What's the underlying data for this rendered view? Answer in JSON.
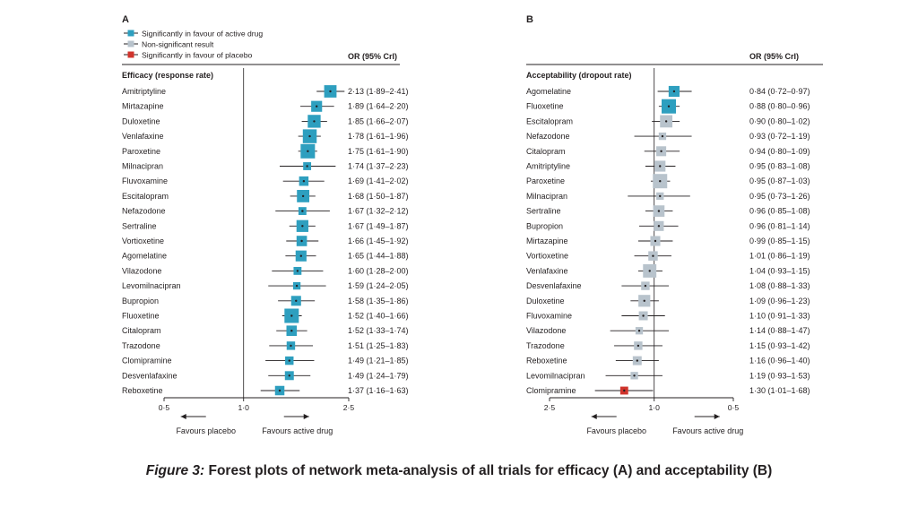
{
  "legend": {
    "items": [
      {
        "label": "Significantly in favour of active drug",
        "color": "#2e9fbf",
        "icon": "teal-square"
      },
      {
        "label": "Non-significant result",
        "color": "#b8c3cc",
        "icon": "grey-square"
      },
      {
        "label": "Significantly in favour of placebo",
        "color": "#d0342c",
        "icon": "red-square"
      }
    ]
  },
  "caption": {
    "label": "Figure 3:",
    "text": "Forest plots of network meta-analysis of all trials for efficacy (A) and acceptability (B)"
  },
  "chart_data": [
    {
      "type": "forest",
      "panel_label": "A",
      "title": "Efficacy (response rate)",
      "column_header": "OR (95% CrI)",
      "x_scale": "log",
      "xlim": [
        0.5,
        2.5
      ],
      "x_ticks": [
        0.5,
        1.0,
        2.5
      ],
      "x_tick_labels": [
        "0·5",
        "1·0",
        "2·5"
      ],
      "reference_line": 1.0,
      "direction_left": "Favours placebo",
      "direction_right": "Favours active drug",
      "rows": [
        {
          "label": "Amitriptyline",
          "or": 2.13,
          "lo": 1.89,
          "hi": 2.41,
          "ci_text": "2·13 (1·89–2·41)",
          "result": "favour_drug",
          "weight": 0.8
        },
        {
          "label": "Mirtazapine",
          "or": 1.89,
          "lo": 1.64,
          "hi": 2.2,
          "ci_text": "1·89 (1·64–2·20)",
          "result": "favour_drug",
          "weight": 0.65
        },
        {
          "label": "Duloxetine",
          "or": 1.85,
          "lo": 1.66,
          "hi": 2.07,
          "ci_text": "1·85 (1·66–2·07)",
          "result": "favour_drug",
          "weight": 0.85
        },
        {
          "label": "Venlafaxine",
          "or": 1.78,
          "lo": 1.61,
          "hi": 1.96,
          "ci_text": "1·78 (1·61–1·96)",
          "result": "favour_drug",
          "weight": 0.95
        },
        {
          "label": "Paroxetine",
          "or": 1.75,
          "lo": 1.61,
          "hi": 1.9,
          "ci_text": "1·75 (1·61–1·90)",
          "result": "favour_drug",
          "weight": 1.0
        },
        {
          "label": "Milnacipran",
          "or": 1.74,
          "lo": 1.37,
          "hi": 2.23,
          "ci_text": "1·74 (1·37–2·23)",
          "result": "favour_drug",
          "weight": 0.35
        },
        {
          "label": "Fluvoxamine",
          "or": 1.69,
          "lo": 1.41,
          "hi": 2.02,
          "ci_text": "1·69 (1·41–2·02)",
          "result": "favour_drug",
          "weight": 0.5
        },
        {
          "label": "Escitalopram",
          "or": 1.68,
          "lo": 1.5,
          "hi": 1.87,
          "ci_text": "1·68 (1·50–1·87)",
          "result": "favour_drug",
          "weight": 0.8
        },
        {
          "label": "Nefazodone",
          "or": 1.67,
          "lo": 1.32,
          "hi": 2.12,
          "ci_text": "1·67 (1·32–2·12)",
          "result": "favour_drug",
          "weight": 0.35
        },
        {
          "label": "Sertraline",
          "or": 1.67,
          "lo": 1.49,
          "hi": 1.87,
          "ci_text": "1·67 (1·49–1·87)",
          "result": "favour_drug",
          "weight": 0.75
        },
        {
          "label": "Vortioxetine",
          "or": 1.66,
          "lo": 1.45,
          "hi": 1.92,
          "ci_text": "1·66 (1·45–1·92)",
          "result": "favour_drug",
          "weight": 0.6
        },
        {
          "label": "Agomelatine",
          "or": 1.65,
          "lo": 1.44,
          "hi": 1.88,
          "ci_text": "1·65 (1·44–1·88)",
          "result": "favour_drug",
          "weight": 0.65
        },
        {
          "label": "Vilazodone",
          "or": 1.6,
          "lo": 1.28,
          "hi": 2.0,
          "ci_text": "1·60 (1·28–2·00)",
          "result": "favour_drug",
          "weight": 0.35
        },
        {
          "label": "Levomilnacipran",
          "or": 1.59,
          "lo": 1.24,
          "hi": 2.05,
          "ci_text": "1·59 (1·24–2·05)",
          "result": "favour_drug",
          "weight": 0.3
        },
        {
          "label": "Bupropion",
          "or": 1.58,
          "lo": 1.35,
          "hi": 1.86,
          "ci_text": "1·58 (1·35–1·86)",
          "result": "favour_drug",
          "weight": 0.55
        },
        {
          "label": "Fluoxetine",
          "or": 1.52,
          "lo": 1.4,
          "hi": 1.66,
          "ci_text": "1·52 (1·40–1·66)",
          "result": "favour_drug",
          "weight": 1.0
        },
        {
          "label": "Citalopram",
          "or": 1.52,
          "lo": 1.33,
          "hi": 1.74,
          "ci_text": "1·52 (1·33–1·74)",
          "result": "favour_drug",
          "weight": 0.6
        },
        {
          "label": "Trazodone",
          "or": 1.51,
          "lo": 1.25,
          "hi": 1.83,
          "ci_text": "1·51 (1·25–1·83)",
          "result": "favour_drug",
          "weight": 0.4
        },
        {
          "label": "Clomipramine",
          "or": 1.49,
          "lo": 1.21,
          "hi": 1.85,
          "ci_text": "1·49 (1·21–1·85)",
          "result": "favour_drug",
          "weight": 0.4
        },
        {
          "label": "Desvenlafaxine",
          "or": 1.49,
          "lo": 1.24,
          "hi": 1.79,
          "ci_text": "1·49 (1·24–1·79)",
          "result": "favour_drug",
          "weight": 0.45
        },
        {
          "label": "Reboxetine",
          "or": 1.37,
          "lo": 1.16,
          "hi": 1.63,
          "ci_text": "1·37 (1·16–1·63)",
          "result": "favour_drug",
          "weight": 0.5
        }
      ]
    },
    {
      "type": "forest",
      "panel_label": "B",
      "title": "Acceptability (dropout rate)",
      "column_header": "OR (95% CrI)",
      "x_scale": "log",
      "x_reversed": true,
      "xlim": [
        2.5,
        0.5
      ],
      "x_ticks": [
        2.5,
        1.0,
        0.5
      ],
      "x_tick_labels": [
        "2·5",
        "1·0",
        "0·5"
      ],
      "reference_line": 1.0,
      "direction_left": "Favours placebo",
      "direction_right": "Favours active drug",
      "rows": [
        {
          "label": "Agomelatine",
          "or": 0.84,
          "lo": 0.72,
          "hi": 0.97,
          "ci_text": "0·84 (0·72–0·97)",
          "result": "favour_drug",
          "weight": 0.65
        },
        {
          "label": "Fluoxetine",
          "or": 0.88,
          "lo": 0.8,
          "hi": 0.96,
          "ci_text": "0·88 (0·80–0·96)",
          "result": "favour_drug",
          "weight": 1.0
        },
        {
          "label": "Escitalopram",
          "or": 0.9,
          "lo": 0.8,
          "hi": 1.02,
          "ci_text": "0·90 (0·80–1·02)",
          "result": "non_significant",
          "weight": 0.8
        },
        {
          "label": "Nefazodone",
          "or": 0.93,
          "lo": 0.72,
          "hi": 1.19,
          "ci_text": "0·93 (0·72–1·19)",
          "result": "non_significant",
          "weight": 0.3
        },
        {
          "label": "Citalopram",
          "or": 0.94,
          "lo": 0.8,
          "hi": 1.09,
          "ci_text": "0·94 (0·80–1·09)",
          "result": "non_significant",
          "weight": 0.55
        },
        {
          "label": "Amitriptyline",
          "or": 0.95,
          "lo": 0.83,
          "hi": 1.08,
          "ci_text": "0·95 (0·83–1·08)",
          "result": "non_significant",
          "weight": 0.65
        },
        {
          "label": "Paroxetine",
          "or": 0.95,
          "lo": 0.87,
          "hi": 1.03,
          "ci_text": "0·95 (0·87–1·03)",
          "result": "non_significant",
          "weight": 1.0
        },
        {
          "label": "Milnacipran",
          "or": 0.95,
          "lo": 0.73,
          "hi": 1.26,
          "ci_text": "0·95 (0·73–1·26)",
          "result": "non_significant",
          "weight": 0.3
        },
        {
          "label": "Sertraline",
          "or": 0.96,
          "lo": 0.85,
          "hi": 1.08,
          "ci_text": "0·96 (0·85–1·08)",
          "result": "non_significant",
          "weight": 0.7
        },
        {
          "label": "Bupropion",
          "or": 0.96,
          "lo": 0.81,
          "hi": 1.14,
          "ci_text": "0·96 (0·81–1·14)",
          "result": "non_significant",
          "weight": 0.55
        },
        {
          "label": "Mirtazapine",
          "or": 0.99,
          "lo": 0.85,
          "hi": 1.15,
          "ci_text": "0·99 (0·85–1·15)",
          "result": "non_significant",
          "weight": 0.55
        },
        {
          "label": "Vortioxetine",
          "or": 1.01,
          "lo": 0.86,
          "hi": 1.19,
          "ci_text": "1·01 (0·86–1·19)",
          "result": "non_significant",
          "weight": 0.5
        },
        {
          "label": "Venlafaxine",
          "or": 1.04,
          "lo": 0.93,
          "hi": 1.15,
          "ci_text": "1·04 (0·93–1·15)",
          "result": "non_significant",
          "weight": 0.9
        },
        {
          "label": "Desvenlafaxine",
          "or": 1.08,
          "lo": 0.88,
          "hi": 1.33,
          "ci_text": "1·08 (0·88–1·33)",
          "result": "non_significant",
          "weight": 0.4
        },
        {
          "label": "Duloxetine",
          "or": 1.09,
          "lo": 0.96,
          "hi": 1.23,
          "ci_text": "1·09 (0·96–1·23)",
          "result": "non_significant",
          "weight": 0.75
        },
        {
          "label": "Fluvoxamine",
          "or": 1.1,
          "lo": 0.91,
          "hi": 1.33,
          "ci_text": "1·10 (0·91–1·33)",
          "result": "non_significant",
          "weight": 0.45
        },
        {
          "label": "Vilazodone",
          "or": 1.14,
          "lo": 0.88,
          "hi": 1.47,
          "ci_text": "1·14 (0·88–1·47)",
          "result": "non_significant",
          "weight": 0.3
        },
        {
          "label": "Trazodone",
          "or": 1.15,
          "lo": 0.93,
          "hi": 1.42,
          "ci_text": "1·15 (0·93–1·42)",
          "result": "non_significant",
          "weight": 0.4
        },
        {
          "label": "Reboxetine",
          "or": 1.16,
          "lo": 0.96,
          "hi": 1.4,
          "ci_text": "1·16 (0·96–1·40)",
          "result": "non_significant",
          "weight": 0.45
        },
        {
          "label": "Levomilnacipran",
          "or": 1.19,
          "lo": 0.93,
          "hi": 1.53,
          "ci_text": "1·19 (0·93–1·53)",
          "result": "non_significant",
          "weight": 0.3
        },
        {
          "label": "Clomipramine",
          "or": 1.3,
          "lo": 1.01,
          "hi": 1.68,
          "ci_text": "1·30 (1·01–1·68)",
          "result": "favour_placebo",
          "weight": 0.35
        }
      ]
    }
  ]
}
